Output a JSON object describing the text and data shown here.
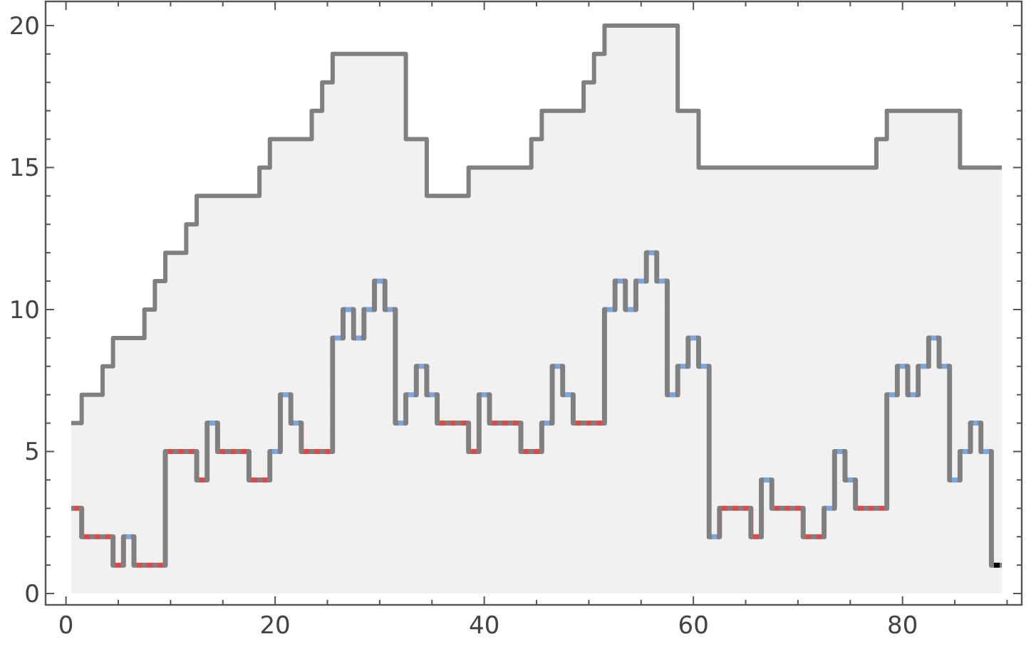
{
  "chart_data": {
    "type": "step",
    "x": [
      1,
      2,
      3,
      4,
      5,
      6,
      7,
      8,
      9,
      10,
      11,
      12,
      13,
      14,
      15,
      16,
      17,
      18,
      19,
      20,
      21,
      22,
      23,
      24,
      25,
      26,
      27,
      28,
      29,
      30,
      31,
      32,
      33,
      34,
      35,
      36,
      37,
      38,
      39,
      40,
      41,
      42,
      43,
      44,
      45,
      46,
      47,
      48,
      49,
      50,
      51,
      52,
      53,
      54,
      55,
      56,
      57,
      58,
      59,
      60,
      61,
      62,
      63,
      64,
      65,
      66,
      67,
      68,
      69,
      70,
      71,
      72,
      73,
      74,
      75,
      76,
      77,
      78,
      79,
      80,
      81,
      82,
      83,
      84,
      85,
      86,
      87,
      88,
      89
    ],
    "series": [
      {
        "type": "area",
        "color": "#808080",
        "values": [
          6,
          7,
          7,
          8,
          9,
          9,
          9,
          10,
          11,
          12,
          12,
          13,
          14,
          14,
          14,
          14,
          14,
          14,
          15,
          16,
          16,
          16,
          16,
          17,
          18,
          19,
          19,
          19,
          19,
          19,
          19,
          19,
          16,
          16,
          14,
          14,
          14,
          14,
          15,
          15,
          15,
          15,
          15,
          15,
          16,
          17,
          17,
          17,
          17,
          18,
          19,
          20,
          20,
          20,
          20,
          20,
          20,
          20,
          17,
          17,
          15,
          15,
          15,
          15,
          15,
          15,
          15,
          15,
          15,
          15,
          15,
          15,
          15,
          15,
          15,
          15,
          15,
          16,
          17,
          17,
          17,
          17,
          17,
          17,
          17,
          15,
          15,
          15,
          15
        ]
      },
      {
        "color": "#808080",
        "values": [
          3,
          2,
          2,
          2,
          1,
          2,
          1,
          1,
          1,
          5,
          5,
          5,
          4,
          6,
          5,
          5,
          5,
          4,
          4,
          5,
          7,
          6,
          5,
          5,
          5,
          9,
          10,
          9,
          10,
          11,
          10,
          6,
          7,
          8,
          7,
          6,
          6,
          6,
          5,
          7,
          6,
          6,
          6,
          5,
          5,
          6,
          8,
          7,
          6,
          6,
          6,
          10,
          11,
          10,
          11,
          12,
          11,
          7,
          8,
          9,
          8,
          2,
          3,
          3,
          3,
          2,
          4,
          3,
          3,
          3,
          2,
          2,
          3,
          5,
          4,
          3,
          3,
          3,
          7,
          8,
          7,
          8,
          9,
          8,
          4,
          5,
          6,
          5,
          1
        ],
        "colors": [
          "#e04848",
          "#e04848",
          "#e04848",
          "#e04848",
          "#e04848",
          "#7aa6e0",
          "#e04848",
          "#e04848",
          "#e04848",
          "#e04848",
          "#e04848",
          "#e04848",
          "#e04848",
          "#7aa6e0",
          "#e04848",
          "#e04848",
          "#e04848",
          "#e04848",
          "#e04848",
          "#7aa6e0",
          "#7aa6e0",
          "#7aa6e0",
          "#e04848",
          "#e04848",
          "#e04848",
          "#7aa6e0",
          "#7aa6e0",
          "#7aa6e0",
          "#7aa6e0",
          "#7aa6e0",
          "#7aa6e0",
          "#7aa6e0",
          "#7aa6e0",
          "#7aa6e0",
          "#7aa6e0",
          "#e04848",
          "#e04848",
          "#e04848",
          "#e04848",
          "#7aa6e0",
          "#e04848",
          "#e04848",
          "#e04848",
          "#e04848",
          "#e04848",
          "#7aa6e0",
          "#7aa6e0",
          "#7aa6e0",
          "#e04848",
          "#e04848",
          "#e04848",
          "#7aa6e0",
          "#7aa6e0",
          "#7aa6e0",
          "#7aa6e0",
          "#7aa6e0",
          "#7aa6e0",
          "#7aa6e0",
          "#7aa6e0",
          "#7aa6e0",
          "#7aa6e0",
          "#7aa6e0",
          "#e04848",
          "#e04848",
          "#e04848",
          "#e04848",
          "#7aa6e0",
          "#e04848",
          "#e04848",
          "#e04848",
          "#e04848",
          "#e04848",
          "#7aa6e0",
          "#7aa6e0",
          "#7aa6e0",
          "#e04848",
          "#e04848",
          "#e04848",
          "#7aa6e0",
          "#7aa6e0",
          "#7aa6e0",
          "#7aa6e0",
          "#7aa6e0",
          "#7aa6e0",
          "#7aa6e0",
          "#7aa6e0",
          "#7aa6e0",
          "#7aa6e0",
          "#000000"
        ]
      }
    ],
    "xlim": [
      -1.95,
      91.4
    ],
    "xticks": [
      0,
      {
        "value": 5,
        "label": null
      },
      {
        "value": 10,
        "label": null
      },
      {
        "value": 15,
        "label": null
      },
      20,
      {
        "value": 25,
        "label": null
      },
      {
        "value": 30,
        "label": null
      },
      {
        "value": 35,
        "label": null
      },
      40,
      {
        "value": 45,
        "label": null
      },
      {
        "value": 50,
        "label": null
      },
      {
        "value": 55,
        "label": null
      },
      60,
      {
        "value": 65,
        "label": null
      },
      {
        "value": 70,
        "label": null
      },
      {
        "value": 75,
        "label": null
      },
      80,
      {
        "value": 85,
        "label": null
      },
      {
        "value": 90,
        "label": null
      }
    ],
    "ylim": [
      -0.4,
      20.85
    ],
    "yticks": [
      0,
      {
        "value": 1,
        "label": null
      },
      {
        "value": 2,
        "label": null
      },
      {
        "value": 3,
        "label": null
      },
      {
        "value": 4,
        "label": null
      },
      5,
      {
        "value": 6,
        "label": null
      },
      {
        "value": 7,
        "label": null
      },
      {
        "value": 8,
        "label": null
      },
      {
        "value": 9,
        "label": null
      },
      10,
      {
        "value": 11,
        "label": null
      },
      {
        "value": 12,
        "label": null
      },
      {
        "value": 13,
        "label": null
      },
      {
        "value": 14,
        "label": null
      },
      15,
      {
        "value": 16,
        "label": null
      },
      {
        "value": 17,
        "label": null
      },
      {
        "value": 18,
        "label": null
      },
      {
        "value": 19,
        "label": null
      },
      20
    ]
  }
}
